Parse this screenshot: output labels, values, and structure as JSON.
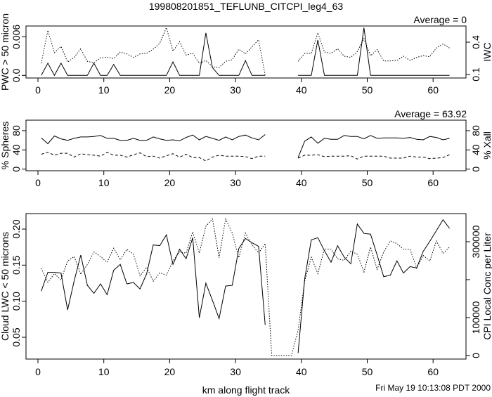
{
  "chart_data": [
    {
      "type": "line",
      "title": "199808201851_TEFLUNB_CITCPI_leg4_63",
      "annotation": "Average = 0",
      "xlabel": "",
      "ylabel": "PWC > 50 micron",
      "ylabel_right": "IWC",
      "xlim": [
        0,
        63
      ],
      "x_ticks": [
        0,
        10,
        20,
        30,
        40,
        50,
        60
      ],
      "y_ticks": [
        {
          "value": 0,
          "label": "0.0"
        },
        {
          "value": 0.006,
          "label": "0.006"
        }
      ],
      "y_right_ticks": [
        {
          "value": 0.1,
          "label": "0.1"
        },
        {
          "value": 0.4,
          "label": "0.4"
        }
      ],
      "series": [
        {
          "name": "PWC > 50 micron",
          "axis": "left",
          "style": "solid",
          "values": [
            0,
            0.0019,
            0,
            0.0019,
            0,
            0,
            0,
            0,
            0.0019,
            0,
            0,
            0.0017,
            0,
            0,
            0,
            0,
            0,
            0,
            0,
            0,
            0.0021,
            0,
            0,
            0,
            0,
            0.0066,
            0.0012,
            0,
            0,
            0,
            0,
            0.0023,
            0,
            0,
            0,
            null,
            null,
            null,
            null,
            0,
            0,
            0,
            0.0055,
            0,
            0,
            0,
            0,
            0,
            0,
            0.0074,
            0,
            0,
            0,
            0,
            0,
            0,
            0,
            0,
            0,
            0,
            0,
            0,
            0
          ]
        },
        {
          "name": "IWC",
          "axis": "right",
          "style": "dotted",
          "values": [
            0.204,
            0.509,
            0.302,
            0.361,
            0.215,
            0.259,
            0.339,
            0.222,
            0.209,
            0.254,
            0.259,
            0.248,
            0.309,
            0.291,
            0.259,
            0.291,
            0.296,
            0.335,
            0.389,
            0.535,
            0.317,
            0.404,
            0.28,
            0.296,
            0.204,
            0.23,
            0.172,
            0.165,
            0.222,
            0.237,
            0.335,
            0.291,
            0.357,
            0.422,
            0.09,
            null,
            null,
            null,
            null,
            0.222,
            0.296,
            0.296,
            0.487,
            0.309,
            0.296,
            0.339,
            0.27,
            0.259,
            0.313,
            0.433,
            0.274,
            0.33,
            0.226,
            0.226,
            0.23,
            0.27,
            0.23,
            0.259,
            0.274,
            0.265,
            0.346,
            0.383,
            0.346
          ]
        }
      ]
    },
    {
      "type": "line",
      "annotation": "Average = 63.92",
      "ylabel": "% Spheres",
      "ylabel_right": "% Xall",
      "xlim": [
        0,
        63
      ],
      "x_ticks": [
        0,
        10,
        20,
        30,
        40,
        50,
        60
      ],
      "y_ticks": [
        {
          "value": 0,
          "label": "0"
        },
        {
          "value": 40,
          "label": "40"
        },
        {
          "value": 80,
          "label": "80"
        }
      ],
      "y_right_ticks": [
        {
          "value": 0,
          "label": "0"
        },
        {
          "value": 40,
          "label": "40"
        },
        {
          "value": 80,
          "label": "80"
        }
      ],
      "series": [
        {
          "name": "% Spheres",
          "axis": "left",
          "style": "solid",
          "values": [
            65,
            53,
            69,
            63,
            60,
            64,
            67,
            67,
            68,
            70,
            64,
            64,
            60,
            60,
            64,
            60,
            60,
            67,
            63,
            60,
            61,
            59,
            66,
            71,
            61,
            68,
            64,
            60,
            67,
            61,
            68,
            71,
            65,
            61,
            72,
            null,
            null,
            null,
            null,
            24,
            58,
            67,
            54,
            64,
            62,
            62,
            70,
            68,
            68,
            63,
            70,
            64,
            65,
            65,
            65,
            64,
            66,
            62,
            61,
            68,
            66,
            61,
            64
          ]
        },
        {
          "name": "% Xall",
          "axis": "right",
          "style": "dashed",
          "values": [
            31,
            35,
            29,
            33,
            33,
            25,
            32,
            30,
            29,
            27,
            35,
            29,
            29,
            25,
            30,
            34,
            26,
            27,
            23,
            28,
            32,
            25,
            31,
            24,
            24,
            17,
            25,
            29,
            27,
            27,
            27,
            26,
            22,
            27,
            27,
            null,
            null,
            null,
            null,
            23,
            29,
            29,
            30,
            26,
            27,
            27,
            27,
            28,
            21,
            27,
            27,
            27,
            27,
            23,
            23,
            23,
            27,
            25,
            25,
            22,
            23,
            24,
            30
          ]
        }
      ]
    },
    {
      "type": "line",
      "xlabel": "km along flight track",
      "ylabel": "Cloud LWC < 50 microns",
      "ylabel_right": "CPI Local Conc per Liter",
      "xlim": [
        0,
        63
      ],
      "x_ticks": [
        0,
        10,
        20,
        30,
        40,
        50,
        60
      ],
      "y_ticks": [
        {
          "value": 0.05,
          "label": "0.05"
        },
        {
          "value": 0.1,
          "label": "0.10"
        },
        {
          "value": 0.15,
          "label": "0.15"
        },
        {
          "value": 0.2,
          "label": "0.20"
        }
      ],
      "y_right_ticks": [
        {
          "value": 0,
          "label": "0"
        },
        {
          "value": 100000,
          "label": "100000"
        },
        {
          "value": 200000,
          "label": ""
        },
        {
          "value": 300000,
          "label": "300000"
        }
      ],
      "series": [
        {
          "name": "Cloud LWC < 50 microns",
          "axis": "left",
          "style": "solid",
          "values": [
            0.114,
            0.14,
            0.14,
            0.139,
            0.088,
            0.128,
            0.164,
            0.122,
            0.111,
            0.124,
            0.109,
            0.143,
            0.151,
            0.124,
            0.126,
            0.117,
            0.138,
            0.178,
            0.177,
            0.192,
            0.151,
            0.172,
            0.159,
            0.188,
            0.077,
            0.125,
            0.101,
            0.076,
            0.121,
            0.122,
            0.173,
            0.187,
            0.181,
            0.176,
            0.067,
            null,
            null,
            null,
            null,
            0.028,
            0.131,
            0.185,
            0.188,
            0.17,
            0.154,
            0.177,
            0.161,
            0.152,
            0.207,
            0.194,
            0.193,
            0.164,
            0.134,
            0.136,
            0.156,
            0.139,
            0.148,
            0.146,
            0.169,
            0.183,
            0.198,
            0.213,
            0.201
          ]
        },
        {
          "name": "CPI Local Conc per Liter",
          "axis": "right",
          "style": "dotted",
          "values": [
            230000,
            193000,
            216000,
            199000,
            249000,
            261000,
            214000,
            240000,
            273000,
            261000,
            246000,
            283000,
            252000,
            280000,
            267000,
            210000,
            233000,
            196000,
            218000,
            212000,
            249000,
            273000,
            270000,
            326000,
            270000,
            341000,
            360000,
            258000,
            360000,
            323000,
            258000,
            323000,
            292000,
            270000,
            295000,
            0,
            0,
            0,
            0,
            67000,
            196000,
            259000,
            216000,
            281000,
            280000,
            255000,
            251000,
            275000,
            267000,
            220000,
            286000,
            227000,
            273000,
            302000,
            295000,
            280000,
            280000,
            230000,
            264000,
            249000,
            302000,
            269000,
            286000
          ]
        }
      ]
    }
  ],
  "x_values": [
    0.5,
    1.5,
    2.5,
    3.5,
    4.5,
    5.5,
    6.5,
    7.5,
    8.5,
    9.5,
    10.5,
    11.5,
    12.5,
    13.5,
    14.5,
    15.5,
    16.5,
    17.5,
    18.5,
    19.5,
    20.5,
    21.5,
    22.5,
    23.5,
    24.5,
    25.5,
    26.5,
    27.5,
    28.5,
    29.5,
    30.5,
    31.5,
    32.5,
    33.5,
    34.5,
    35.5,
    36.5,
    37.5,
    38.5,
    39.5,
    40.5,
    41.5,
    42.5,
    43.5,
    44.5,
    45.5,
    46.5,
    47.5,
    48.5,
    49.5,
    50.5,
    51.5,
    52.5,
    53.5,
    54.5,
    55.5,
    56.5,
    57.5,
    58.5,
    59.5,
    60.5,
    61.5,
    62.5
  ],
  "timestamp": "Fri May 19 10:13:08 PDT 2000"
}
